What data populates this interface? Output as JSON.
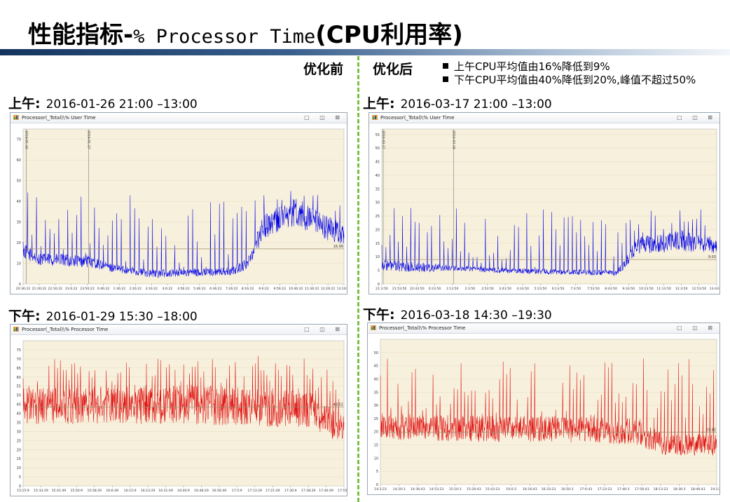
{
  "slide": {
    "title_main": "性能指标-",
    "title_code": "% Processor Time",
    "title_tail": "(CPU利用率)",
    "before_label": "优化前",
    "after_label": "优化后",
    "notes": [
      "上午CPU平均值由16%降低到9%",
      "下午CPU平均值由40%降低到20%,峰值不超过50%"
    ]
  },
  "periods": {
    "am_before": {
      "label": "上午:",
      "range": "2016-01-26 21:00 –13:00"
    },
    "am_after": {
      "label": "上午:",
      "range": "2016-03-17 21:00 –13:00"
    },
    "pm_before": {
      "label": "下午:",
      "range": "2016-01-29 15:30 –18:00"
    },
    "pm_after": {
      "label": "下午:",
      "range": "2016-03-18 14:30 –19:30"
    }
  },
  "window_buttons": "□ ◫ ⊠",
  "colors": {
    "blue_series": "#0000e6",
    "red_series": "#e01010",
    "plot_bg": "#f7f0dc",
    "avg_line": "#a09070",
    "divider": "#79c143"
  },
  "chart_data": [
    {
      "id": "am_before",
      "type": "line",
      "title": "Processor(_Total)\\% User Time",
      "series_color": "#0000e6",
      "ylim": [
        0,
        75
      ],
      "yticks": [
        0,
        10,
        20,
        30,
        40,
        50,
        60,
        70
      ],
      "xticks": [
        "20:36:22",
        "21:26:22",
        "22:16:22",
        "23:6:22",
        "23:56:22",
        "0:46:22",
        "1:36:22",
        "2:26:22",
        "3:16:22",
        "4:6:22",
        "4:56:22",
        "5:46:22",
        "6:36:22",
        "7:26:22",
        "8:16:22",
        "9:6:22",
        "9:56:22",
        "10:46:22",
        "11:36:22",
        "12:26:22",
        "13:16:22"
      ],
      "markers": [
        {
          "pos": 0.005,
          "label": "2016-01-26"
        },
        {
          "pos": 0.2,
          "label": "2016-01-27"
        }
      ],
      "avg_value": 17,
      "avg_label": "16.99",
      "profile": [
        [
          0,
          16,
          4
        ],
        [
          0.05,
          12,
          3
        ],
        [
          0.2,
          11,
          3
        ],
        [
          0.27,
          8,
          2
        ],
        [
          0.4,
          5,
          2
        ],
        [
          0.65,
          6,
          2
        ],
        [
          0.7,
          10,
          3
        ],
        [
          0.75,
          28,
          6
        ],
        [
          0.85,
          35,
          7
        ],
        [
          0.9,
          30,
          7
        ],
        [
          1,
          24,
          5
        ]
      ],
      "spike_every": 14,
      "spike_max": 45
    },
    {
      "id": "am_after",
      "type": "line",
      "title": "Processor(_Total)\\% User Time",
      "series_color": "#0000e6",
      "ylim": [
        0,
        57
      ],
      "yticks": [
        0,
        5,
        10,
        15,
        20,
        25,
        30,
        35,
        40,
        45,
        50,
        55
      ],
      "xticks": [
        "21:3:50",
        "21:53:50",
        "22:43:50",
        "0:23:50",
        "1:13:50",
        "2:3:50",
        "2:53:50",
        "3:43:50",
        "4:33:50",
        "5:23:50",
        "6:13:50",
        "7:3:50",
        "7:53:50",
        "8:43:50",
        "9:33:50",
        "10:23:50",
        "11:13:50",
        "12:3:50",
        "12:53:50",
        "13:43:50"
      ],
      "markers": [
        {
          "pos": 0.0,
          "label": "2016-03-17"
        },
        {
          "pos": 0.21,
          "label": "2016-03-18"
        }
      ],
      "avg_value": 9,
      "avg_label": "9.03",
      "profile": [
        [
          0,
          7,
          2
        ],
        [
          0.1,
          6,
          2
        ],
        [
          0.2,
          6,
          1
        ],
        [
          0.35,
          5,
          1
        ],
        [
          0.7,
          4,
          1
        ],
        [
          0.73,
          8,
          2
        ],
        [
          0.76,
          14,
          3
        ],
        [
          0.9,
          16,
          4
        ],
        [
          1,
          14,
          3
        ]
      ],
      "spike_every": 13,
      "spike_max": 28
    },
    {
      "id": "pm_before",
      "type": "line",
      "title": "Processor(_Total)\\% Processor Time",
      "series_color": "#e01010",
      "ylim": [
        0,
        80
      ],
      "yticks": [
        0,
        5,
        10,
        15,
        20,
        25,
        30,
        35,
        40,
        45,
        50,
        55,
        60,
        65,
        70,
        75
      ],
      "xticks": [
        "15:25:9",
        "15:33:29",
        "15:41:49",
        "15:50:9",
        "15:58:29",
        "16:6:49",
        "16:15:9",
        "16:23:29",
        "16:31:49",
        "16:40:9",
        "16:48:29",
        "16:56:49",
        "17:5:9",
        "17:13:29",
        "17:21:49",
        "17:30:9",
        "17:38:29",
        "17:46:49",
        "17:55:9"
      ],
      "avg_value": 43.52,
      "avg_label": "43.52",
      "profile": [
        [
          0,
          44,
          10
        ],
        [
          0.5,
          45,
          11
        ],
        [
          0.9,
          42,
          10
        ],
        [
          1,
          30,
          8
        ]
      ],
      "spike_every": 9,
      "spike_max": 72
    },
    {
      "id": "pm_after",
      "type": "line",
      "title": "Processor(_Total)\\% Processor Time",
      "series_color": "#e01010",
      "ylim": [
        0,
        55
      ],
      "yticks": [
        0,
        5,
        10,
        15,
        20,
        25,
        30,
        35,
        40,
        45,
        50
      ],
      "xticks": [
        "14:3:23",
        "14:20:3",
        "14:36:43",
        "14:53:23",
        "15:10:3",
        "15:26:43",
        "15:43:23",
        "16:0:3",
        "16:16:43",
        "16:33:23",
        "16:50:3",
        "17:6:43",
        "17:23:23",
        "17:40:3",
        "17:56:43",
        "18:13:23",
        "18:30:3",
        "18:46:43",
        "19:3:23"
      ],
      "avg_value": 19.82,
      "avg_label": "19.82",
      "profile": [
        [
          0,
          22,
          5
        ],
        [
          0.3,
          21,
          5
        ],
        [
          0.6,
          21,
          5
        ],
        [
          0.75,
          20,
          5
        ],
        [
          0.85,
          15,
          4
        ],
        [
          1,
          15,
          4
        ]
      ],
      "spike_every": 11,
      "spike_max": 48
    }
  ]
}
